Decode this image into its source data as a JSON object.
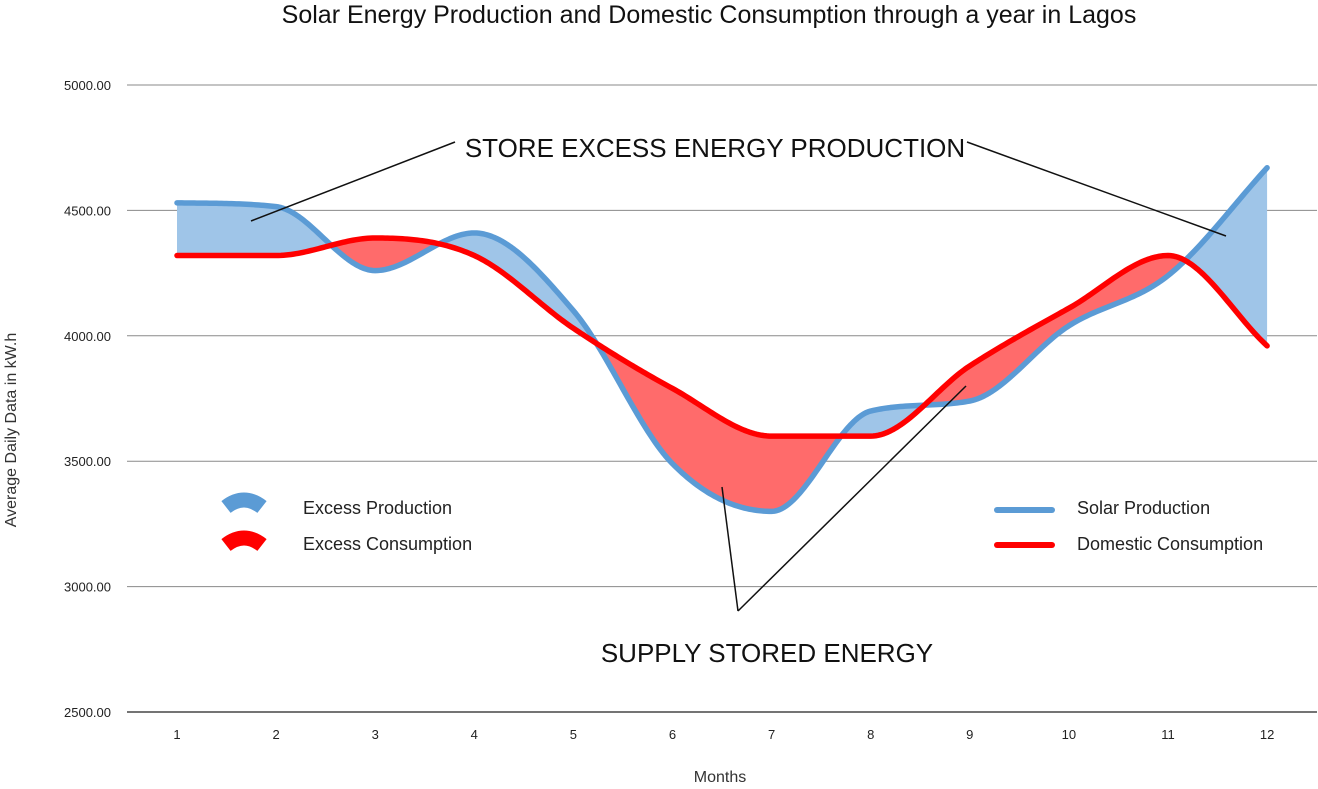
{
  "chart_data": {
    "type": "area",
    "title": "Solar Energy Production and Domestic Consumption through a year in Lagos",
    "xlabel": "Months",
    "ylabel": "Average Daily Data in kW.h",
    "categories": [
      "1",
      "2",
      "3",
      "4",
      "5",
      "6",
      "7",
      "8",
      "9",
      "10",
      "11",
      "12"
    ],
    "x": [
      1,
      2,
      3,
      4,
      5,
      6,
      7,
      8,
      9,
      10,
      11,
      12
    ],
    "ylim": [
      2500,
      5000
    ],
    "yticks": [
      "5000.00",
      "4500.00",
      "4000.00",
      "3500.00",
      "3000.00",
      "2500.00"
    ],
    "yticks_values": [
      5000,
      4500,
      4000,
      3500,
      3000,
      2500
    ],
    "grid": true,
    "series": [
      {
        "name": "Solar Production",
        "color": "#5b9bd5",
        "values": [
          4530,
          4515,
          4260,
          4410,
          4100,
          3490,
          3300,
          3700,
          3740,
          4040,
          4240,
          4670
        ]
      },
      {
        "name": "Domestic Consumption",
        "color": "#ff0000",
        "values": [
          4320,
          4320,
          4390,
          4320,
          4030,
          3790,
          3600,
          3600,
          3880,
          4110,
          4320,
          3960
        ]
      }
    ],
    "fill_legend": [
      {
        "name": "Excess Production",
        "color": "#9fc5e8"
      },
      {
        "name": "Excess Consumption",
        "color": "#ff6b6b"
      }
    ],
    "annotations": [
      {
        "text": "STORE EXCESS ENERGY PRODUCTION"
      },
      {
        "text": "SUPPLY STORED ENERGY"
      }
    ]
  }
}
